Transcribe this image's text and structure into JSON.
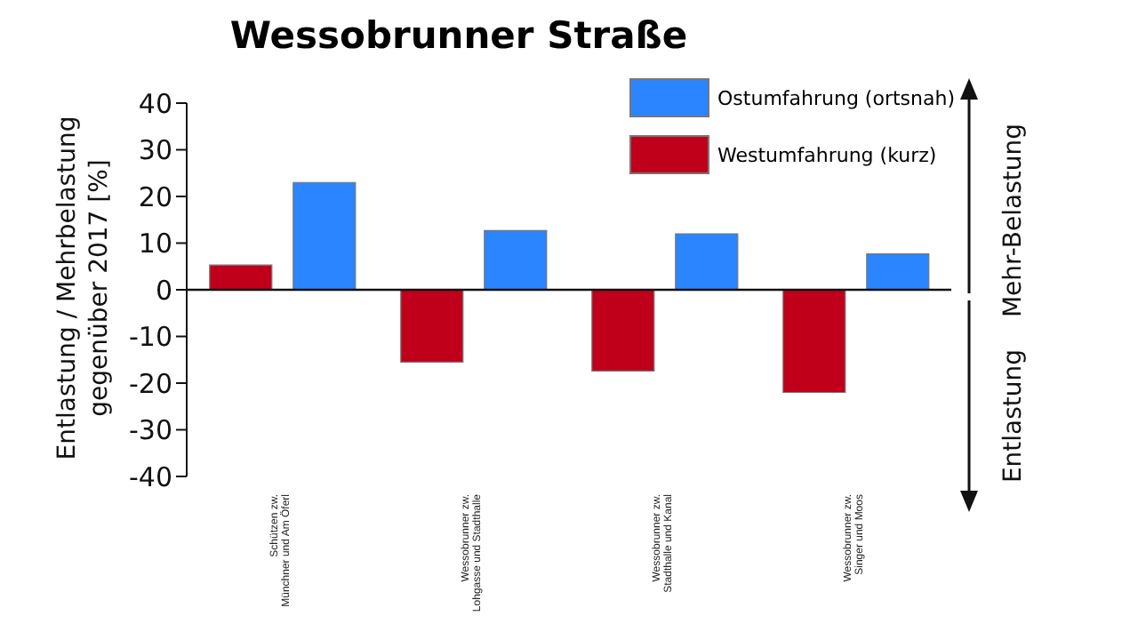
{
  "chart_data": {
    "type": "bar",
    "title": "Wessobrunner Straße",
    "ylabel": "Entlastung / Mehrbelastung\ngegenüber 2017 [%]",
    "categories": [
      "Schützen zw.\nMünchner und Am Öferl",
      "Wessobrunner zw.\nLohgasse und Stadthalle",
      "Wessobrunner zw.\nStadthalle und Kanal",
      "Wessobrunner zw.\nSinger und Moos"
    ],
    "series": [
      {
        "name": "Westumfahrung (kurz)",
        "color": "#c0001a",
        "values": [
          5.3,
          -15.5,
          -17.4,
          -22
        ]
      },
      {
        "name": "Ostumfahrung (ortsnah)",
        "color": "#2a85ff",
        "values": [
          23,
          12.7,
          12,
          7.7
        ]
      }
    ],
    "ylim": [
      -40,
      40
    ],
    "yticks": [
      -40,
      -30,
      -20,
      -10,
      0,
      10,
      20,
      30,
      40
    ],
    "grid": false,
    "legend": "top right",
    "ref_lines": [
      {
        "axis": "y",
        "value": 0
      }
    ],
    "annotations": [
      "Mehr-Belastung",
      "Entlastung"
    ]
  }
}
